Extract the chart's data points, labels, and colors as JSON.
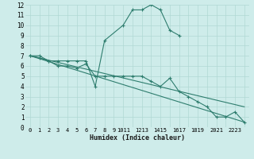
{
  "xlabel": "Humidex (Indice chaleur)",
  "background_color": "#ceecea",
  "line_color": "#2e7d6e",
  "grid_color": "#b0d8d4",
  "xlim": [
    -0.5,
    23.5
  ],
  "ylim": [
    0,
    12
  ],
  "lines": [
    {
      "x": [
        0,
        1,
        2,
        3,
        4,
        5,
        6,
        7,
        8,
        10,
        11,
        12,
        13,
        14,
        15,
        16
      ],
      "y": [
        7,
        7,
        6.5,
        6.5,
        6.5,
        6.5,
        6.5,
        4,
        8.5,
        10,
        11.5,
        11.5,
        12,
        11.5,
        9.5,
        9
      ],
      "markers": true
    },
    {
      "x": [
        0,
        1,
        2,
        3,
        4,
        5,
        6,
        7,
        8,
        9,
        10,
        11,
        12,
        13,
        14,
        15,
        16,
        17,
        18,
        19,
        20,
        21,
        22,
        23
      ],
      "y": [
        7,
        6.8,
        6.5,
        6,
        6,
        5.8,
        6.2,
        5,
        5,
        5,
        5,
        5,
        5,
        4.5,
        4,
        4.8,
        3.5,
        3,
        2.5,
        2,
        1,
        1,
        1.5,
        0.5
      ],
      "markers": true
    },
    {
      "x": [
        0,
        23
      ],
      "y": [
        7,
        0.5
      ],
      "markers": false
    },
    {
      "x": [
        0,
        23
      ],
      "y": [
        7,
        2
      ],
      "markers": false
    }
  ],
  "xtick_labels": [
    "0",
    "1",
    "2",
    "3",
    "4",
    "5",
    "6",
    "7",
    "8",
    "9",
    "1011",
    "1213",
    "1415",
    "1617",
    "1819",
    "2021",
    "2223"
  ],
  "ytick_labels": [
    "0",
    "1",
    "2",
    "3",
    "4",
    "5",
    "6",
    "7",
    "8",
    "9",
    "10",
    "11",
    "12"
  ],
  "ytick_positions": [
    0,
    1,
    2,
    3,
    4,
    5,
    6,
    7,
    8,
    9,
    10,
    11,
    12
  ]
}
